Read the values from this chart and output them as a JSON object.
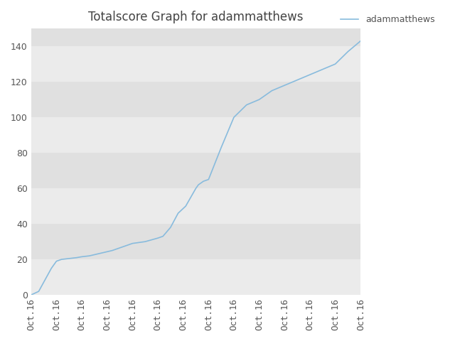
{
  "title": "Totalscore Graph for adammatthews",
  "legend_label": "adammatthews",
  "x_labels": [
    "Oct.16",
    "Oct.16",
    "Oct.16",
    "Oct.16",
    "Oct.16",
    "Oct.16",
    "Oct.16",
    "Oct.16",
    "Oct.16",
    "Oct.16",
    "Oct.16",
    "Oct.16",
    "Oct.16",
    "Oct.16"
  ],
  "line_color": "#88bbdd",
  "band_color_dark": "#e0e0e0",
  "band_color_light": "#ebebeb",
  "figure_bg": "#ffffff",
  "title_color": "#444444",
  "tick_color": "#555555",
  "ylim": [
    0,
    150
  ],
  "yticks": [
    0,
    20,
    40,
    60,
    80,
    100,
    120,
    140
  ],
  "title_fontsize": 12,
  "tick_fontsize": 9,
  "x_data": [
    0,
    0.3,
    0.8,
    1.0,
    1.2,
    1.5,
    1.8,
    2.0,
    2.3,
    2.6,
    2.9,
    3.2,
    3.6,
    4.0,
    4.5,
    5.0,
    5.2,
    5.5,
    5.8,
    6.1,
    6.3,
    6.5,
    6.6,
    6.8,
    7.0,
    7.5,
    8.0,
    8.5,
    9.0,
    9.5,
    10.0,
    10.5,
    11.0,
    11.5,
    12.0,
    12.5,
    13.0
  ],
  "y_data": [
    0,
    2,
    15,
    19,
    20,
    20.5,
    21,
    21.5,
    22,
    23,
    24,
    25,
    27,
    29,
    30,
    32,
    33,
    38,
    46,
    50,
    55,
    60,
    62,
    64,
    65,
    83,
    100,
    107,
    110,
    115,
    118,
    121,
    124,
    127,
    130,
    137,
    143
  ]
}
